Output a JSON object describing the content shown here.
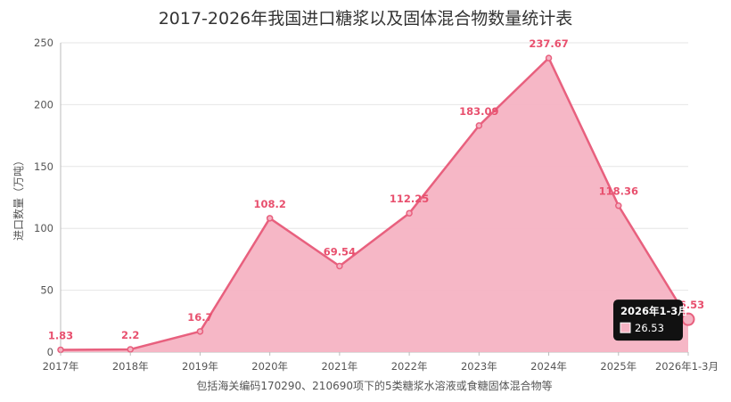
{
  "chart_data": {
    "type": "area",
    "title": "2017-2026年我国进口糖浆以及固体混合物数量统计表",
    "ylabel": "进口数量（万吨）",
    "xlabel": "包括海关编码170290、210690项下的5类糖浆水溶液或食糖固体混合物等",
    "categories": [
      "2017年",
      "2018年",
      "2019年",
      "2020年",
      "2021年",
      "2022年",
      "2023年",
      "2024年",
      "2025年",
      "2026年1-3月"
    ],
    "values": [
      1.83,
      2.2,
      16.7,
      108.2,
      69.54,
      112.25,
      183.09,
      237.67,
      118.36,
      26.53
    ],
    "data_labels": [
      "1.83",
      "2.2",
      "16.7",
      "108.2",
      "69.54",
      "112.25",
      "183.09",
      "237.67",
      "118.36",
      "26.53"
    ],
    "ylim": [
      0,
      250
    ],
    "yticks": [
      0,
      50,
      100,
      150,
      200,
      250
    ],
    "grid": "horizontal",
    "colors": {
      "line": "#e8607e",
      "fill": "#f5b3c3",
      "label": "#e8506e"
    },
    "tooltip": {
      "title": "2026年1-3月",
      "value": "26.53",
      "index": 9
    }
  }
}
